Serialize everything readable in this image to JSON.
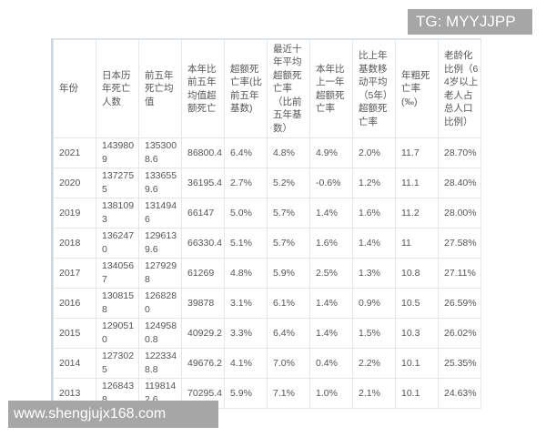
{
  "watermarks": {
    "top": "TG: MYYJJPP",
    "bottom": "www.shengjujx168.com"
  },
  "table": {
    "headers": [
      "年份",
      "日本历年死亡人数",
      "前五年死亡均值",
      "本年比前五年均值超额死亡",
      "超额死亡率(比前五年基数)",
      "最近十年平均超额死亡率（比前五年基数）",
      "本年比上一年超额死亡率",
      "比上年基数移动平均（5年）超额死亡率",
      "年粗死亡率(‰)",
      "老龄化比例（64岁以上老人占总人口比例）"
    ],
    "rows": [
      [
        "2021",
        "1439809",
        "1353008.6",
        "86800.4",
        "6.4%",
        "4.8%",
        "4.9%",
        "2.0%",
        "11.7",
        "28.70%"
      ],
      [
        "2020",
        "1372755",
        "1336559.6",
        "36195.4",
        "2.7%",
        "5.2%",
        "-0.6%",
        "1.2%",
        "11.1",
        "28.40%"
      ],
      [
        "2019",
        "1381093",
        "1314946",
        "66147",
        "5.0%",
        "5.7%",
        "1.4%",
        "1.6%",
        "11.2",
        "28.00%"
      ],
      [
        "2018",
        "1362470",
        "1296139.6",
        "66330.4",
        "5.1%",
        "5.7%",
        "1.6%",
        "1.4%",
        "11",
        "27.58%"
      ],
      [
        "2017",
        "1340567",
        "1279298",
        "61269",
        "4.8%",
        "5.9%",
        "2.5%",
        "1.3%",
        "10.8",
        "27.11%"
      ],
      [
        "2016",
        "1308158",
        "1268280",
        "39878",
        "3.1%",
        "6.1%",
        "1.4%",
        "0.9%",
        "10.5",
        "26.59%"
      ],
      [
        "2015",
        "1290510",
        "1249580.8",
        "40929.2",
        "3.3%",
        "6.4%",
        "1.4%",
        "1.5%",
        "10.3",
        "26.02%"
      ],
      [
        "2014",
        "1273025",
        "1223348.8",
        "49676.2",
        "4.1%",
        "7.0%",
        "0.4%",
        "2.2%",
        "10.1",
        "25.35%"
      ],
      [
        "2013",
        "1268438",
        "1198142.6",
        "70295.4",
        "5.9%",
        "7.1%",
        "1.0%",
        "2.1%",
        "10.1",
        "24.63%"
      ]
    ]
  }
}
